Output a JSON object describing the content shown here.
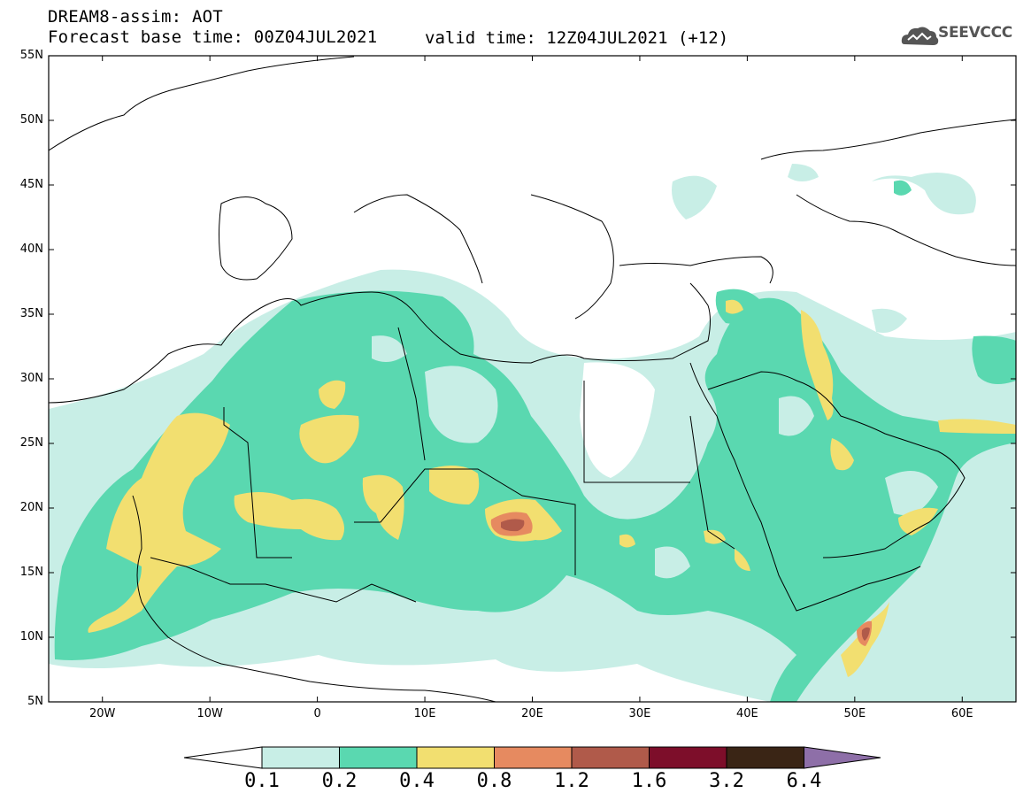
{
  "title": "DREAM8-assim: AOT",
  "subtitle": "Forecast base time: 00Z04JUL2021",
  "valid_time": "valid time: 12Z04JUL2021 (+12)",
  "logo_text": "SEEVCCC",
  "map": {
    "lon_range": [
      -25,
      65
    ],
    "lat_range": [
      5,
      55
    ],
    "lat_labels": [
      "55N",
      "50N",
      "45N",
      "40N",
      "35N",
      "30N",
      "25N",
      "20N",
      "15N",
      "10N",
      "5N"
    ],
    "lat_values": [
      55,
      50,
      45,
      40,
      35,
      30,
      25,
      20,
      15,
      10,
      5
    ],
    "lon_labels": [
      "20W",
      "10W",
      "0",
      "10E",
      "20E",
      "30E",
      "40E",
      "50E",
      "60E"
    ],
    "lon_values": [
      -20,
      -10,
      0,
      10,
      20,
      30,
      40,
      50,
      60
    ],
    "variable": "AOT",
    "max_feature": "maximum AOT 1.2-1.6 centered near 18.5E 19N (Chad)"
  },
  "colorbar": {
    "labels": [
      "0.1",
      "0.2",
      "0.4",
      "0.8",
      "1.2",
      "1.6",
      "3.2",
      "6.4"
    ],
    "colors": [
      "#ffffff",
      "#c8eee6",
      "#5ad8b0",
      "#f2df70",
      "#e68a60",
      "#b05a4a",
      "#7d0e2a",
      "#3a2515",
      "#8e6fa8"
    ]
  }
}
